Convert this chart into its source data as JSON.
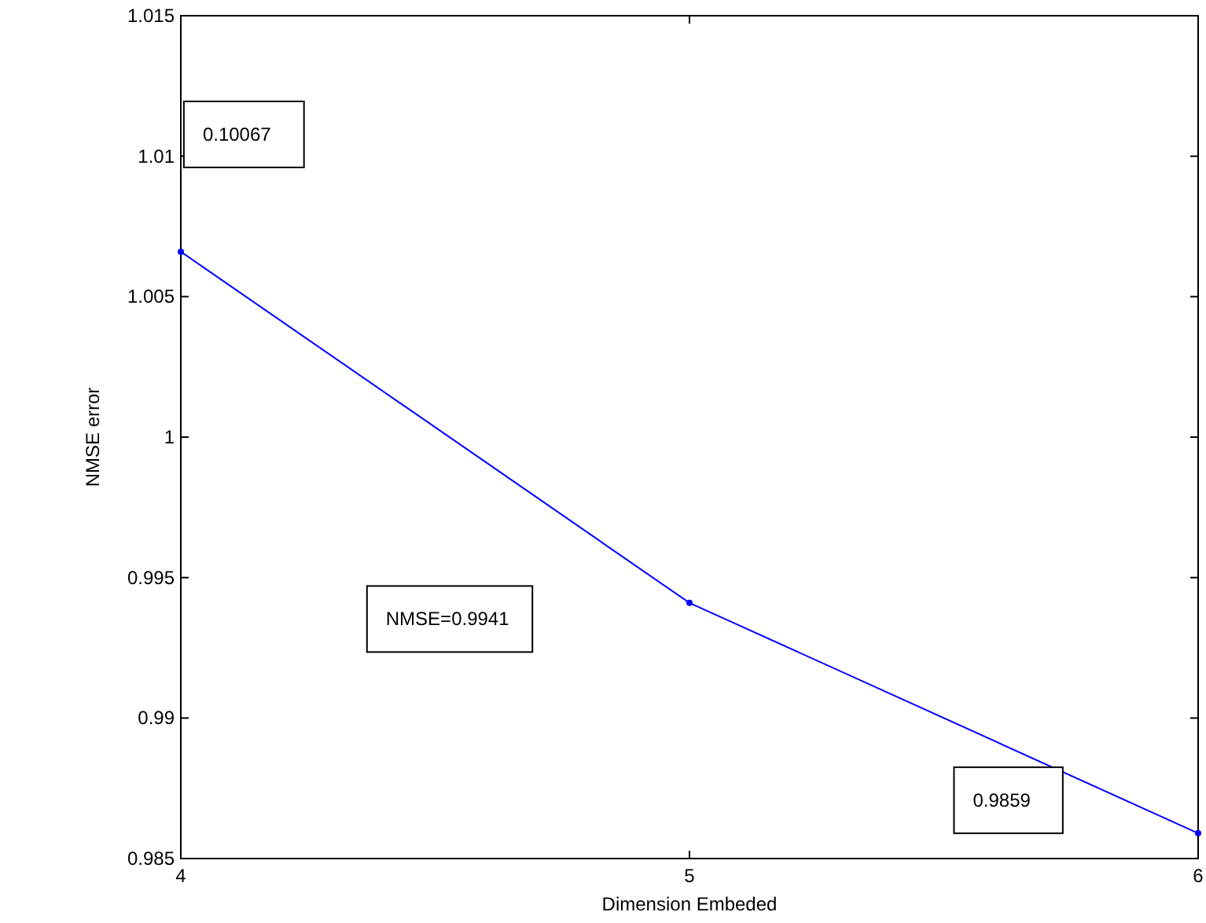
{
  "chart_data": {
    "type": "line",
    "xlabel": "Dimension Embeded",
    "ylabel": "NMSE error",
    "x": [
      4,
      5,
      6
    ],
    "series": [
      {
        "color": "#0000ff",
        "values": [
          1.0066,
          0.9941,
          0.9859
        ]
      }
    ],
    "marker": "circle",
    "line_style": "solid",
    "grid": false,
    "xlim": [
      4,
      6
    ],
    "xticks": [
      4,
      5,
      6
    ],
    "ylim": [
      0.985,
      1.015
    ],
    "yticks": [
      0.985,
      0.99,
      0.995,
      1,
      1.005,
      1.01,
      1.015
    ],
    "annotations": [
      "0.10067",
      "NMSE=0.9941",
      "0.9859"
    ]
  }
}
